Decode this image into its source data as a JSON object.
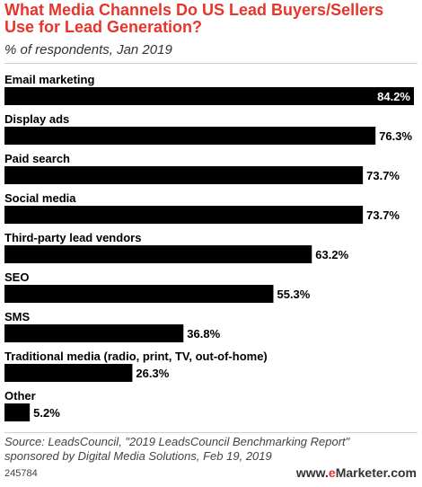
{
  "title": "What Media Channels Do US Lead Buyers/Sellers Use for Lead Generation?",
  "subtitle": "% of respondents, Jan 2019",
  "source": "Source: LeadsCouncil, \"2019 LeadsCouncil Benchmarking Report\" sponsored by Digital Media Solutions, Feb 19, 2019",
  "chart_id": "245784",
  "brand": {
    "prefix": "www.",
    "e": "e",
    "rest": "Marketer.com"
  },
  "colors": {
    "title": "#e8352c",
    "bar": "#000000",
    "label_inside": "#ffffff",
    "label_outside": "#000000"
  },
  "chart_data": {
    "type": "bar",
    "orientation": "horizontal",
    "categories": [
      "Email marketing",
      "Display ads",
      "Paid search",
      "Social media",
      "Third-party lead vendors",
      "SEO",
      "SMS",
      "Traditional media (radio, print, TV, out-of-home)",
      "Other"
    ],
    "values": [
      84.2,
      76.3,
      73.7,
      73.7,
      63.2,
      55.3,
      36.8,
      26.3,
      5.2
    ],
    "value_labels": [
      "84.2%",
      "76.3%",
      "73.7%",
      "73.7%",
      "63.2%",
      "55.3%",
      "36.8%",
      "26.3%",
      "5.2%"
    ],
    "xlim": [
      0,
      84.2
    ],
    "grid": false,
    "legend": "none"
  }
}
